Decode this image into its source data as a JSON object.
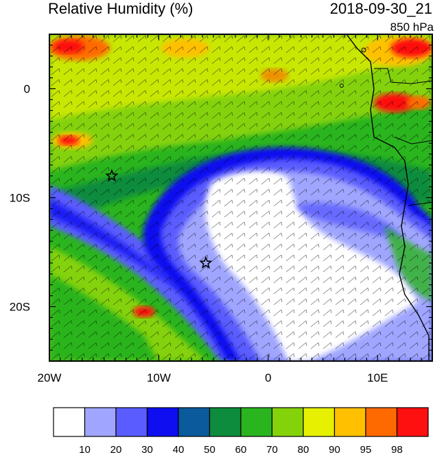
{
  "header": {
    "title": "Relative Humidity (%)",
    "datetime": "2018-09-30_21",
    "level": "850 hPa"
  },
  "map": {
    "lon_labels": [
      "20W",
      "10W",
      "0",
      "10E"
    ],
    "lat_labels": [
      "0",
      "10S",
      "20S"
    ],
    "lon_range": [
      -20,
      15
    ],
    "lat_range": [
      -25,
      5
    ],
    "markers": [
      {
        "name": "star",
        "lon": -14.3,
        "lat": -8.0
      },
      {
        "name": "star",
        "lon": -5.7,
        "lat": -16.0
      }
    ]
  },
  "colorbar": {
    "labels": [
      "10",
      "20",
      "30",
      "40",
      "50",
      "60",
      "70",
      "80",
      "90",
      "95",
      "98"
    ],
    "colors": [
      "#ffffff",
      "#a0a6ff",
      "#5a5cff",
      "#0e0ef0",
      "#0a5a9c",
      "#0c8c3c",
      "#2ab41e",
      "#84d20a",
      "#e6f000",
      "#ffc000",
      "#ff6a00",
      "#ff1010"
    ]
  }
}
